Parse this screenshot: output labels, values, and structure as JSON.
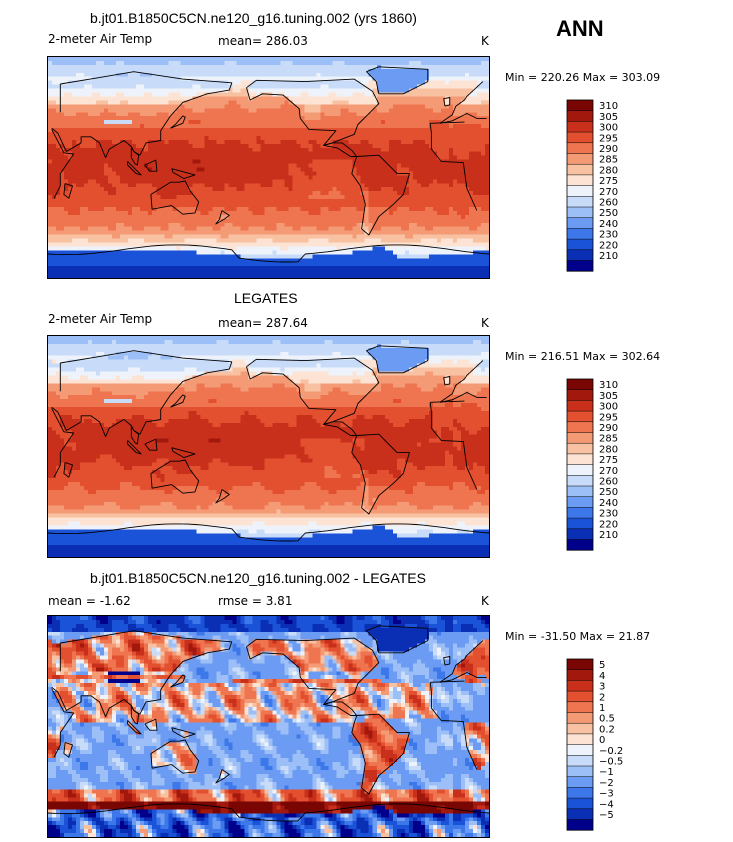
{
  "season": "ANN",
  "colors": {
    "temp_scale": [
      "#00008b",
      "#0a2fb4",
      "#1a52d8",
      "#3d78ea",
      "#6b9bf2",
      "#9cbff7",
      "#c8dcfa",
      "#eef3fb",
      "#fce3d3",
      "#f8c1a2",
      "#f49b76",
      "#ee7550",
      "#e2502f",
      "#c9301b",
      "#a3180d",
      "#7a0603"
    ],
    "diff_scale": [
      "#00008b",
      "#0a2fb4",
      "#1a52d8",
      "#3d78ea",
      "#6b9bf2",
      "#9cbff7",
      "#c8dcfa",
      "#eef3fb",
      "#fce3d3",
      "#f8c1a2",
      "#f49b76",
      "#ee7550",
      "#e2502f",
      "#c9301b",
      "#a3180d",
      "#7a0603"
    ]
  },
  "panels": [
    {
      "title": "b.jt01.B1850C5CN.ne120_g16.tuning.002 (yrs 1860)",
      "variable": "2-meter Air Temp",
      "stat1": "mean= 286.03",
      "stat2": "",
      "units": "K",
      "minmax": "Min = 220.26 Max = 303.09",
      "field": "model"
    },
    {
      "title": "LEGATES",
      "variable": "2-meter Air Temp",
      "stat1": "mean= 287.64",
      "stat2": "",
      "units": "K",
      "minmax": "Min = 216.51 Max = 302.64",
      "field": "obs"
    },
    {
      "title": "b.jt01.B1850C5CN.ne120_g16.tuning.002 - LEGATES",
      "variable": "",
      "stat1": "mean =   -1.62",
      "stat2": "rmse =    3.81",
      "units": "K",
      "minmax": "Min = -31.50 Max =  21.87",
      "field": "diff"
    }
  ],
  "chart_data": [
    {
      "type": "heatmap",
      "title": "b.jt01.B1850C5CN.ne120_g16.tuning.002 (yrs 1860)",
      "variable": "2-meter Air Temp",
      "units": "K",
      "mean": 286.03,
      "min": 220.26,
      "max": 303.09,
      "colorbar_levels": [
        "310",
        "305",
        "300",
        "295",
        "290",
        "285",
        "280",
        "275",
        "270",
        "260",
        "250",
        "240",
        "230",
        "220",
        "210"
      ]
    },
    {
      "type": "heatmap",
      "title": "LEGATES",
      "variable": "2-meter Air Temp",
      "units": "K",
      "mean": 287.64,
      "min": 216.51,
      "max": 302.64,
      "colorbar_levels": [
        "310",
        "305",
        "300",
        "295",
        "290",
        "285",
        "280",
        "275",
        "270",
        "260",
        "250",
        "240",
        "230",
        "220",
        "210"
      ]
    },
    {
      "type": "heatmap",
      "title": "b.jt01.B1850C5CN.ne120_g16.tuning.002 - LEGATES",
      "units": "K",
      "mean": -1.62,
      "rmse": 3.81,
      "min": -31.5,
      "max": 21.87,
      "colorbar_levels": [
        "5",
        "4",
        "3",
        "2",
        "1",
        "0.5",
        "0.2",
        "0",
        "-0.2",
        "-0.5",
        "-1",
        "-2",
        "-3",
        "-4",
        "-5"
      ]
    }
  ]
}
